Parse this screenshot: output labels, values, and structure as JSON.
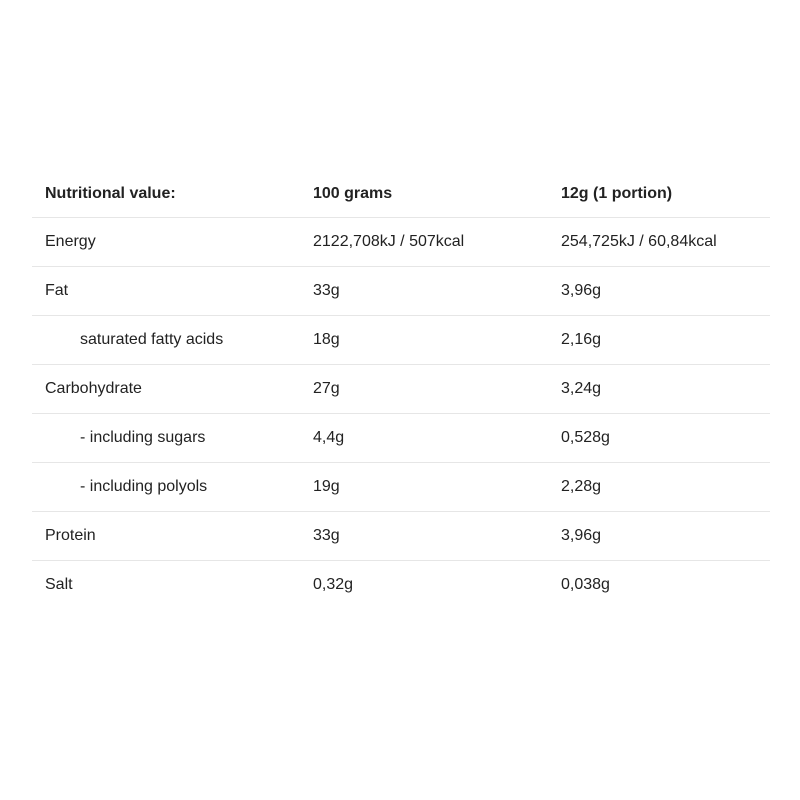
{
  "table": {
    "header": [
      "Nutritional value:",
      "100 grams",
      "12g (1 portion)"
    ],
    "rows": [
      [
        "Energy",
        "2122,708kJ / 507kcal",
        "254,725kJ / 60,84kcal"
      ],
      [
        "Fat",
        "33g",
        "3,96g"
      ],
      [
        "saturated fatty acids",
        "18g",
        "2,16g"
      ],
      [
        "Carbohydrate",
        "27g",
        "3,24g"
      ],
      [
        "- including sugars",
        "4,4g",
        "0,528g"
      ],
      [
        "- including polyols",
        "19g",
        "2,28g"
      ],
      [
        "Protein",
        "33g",
        "3,96g"
      ],
      [
        "Salt",
        "0,32g",
        "0,038g"
      ]
    ]
  }
}
